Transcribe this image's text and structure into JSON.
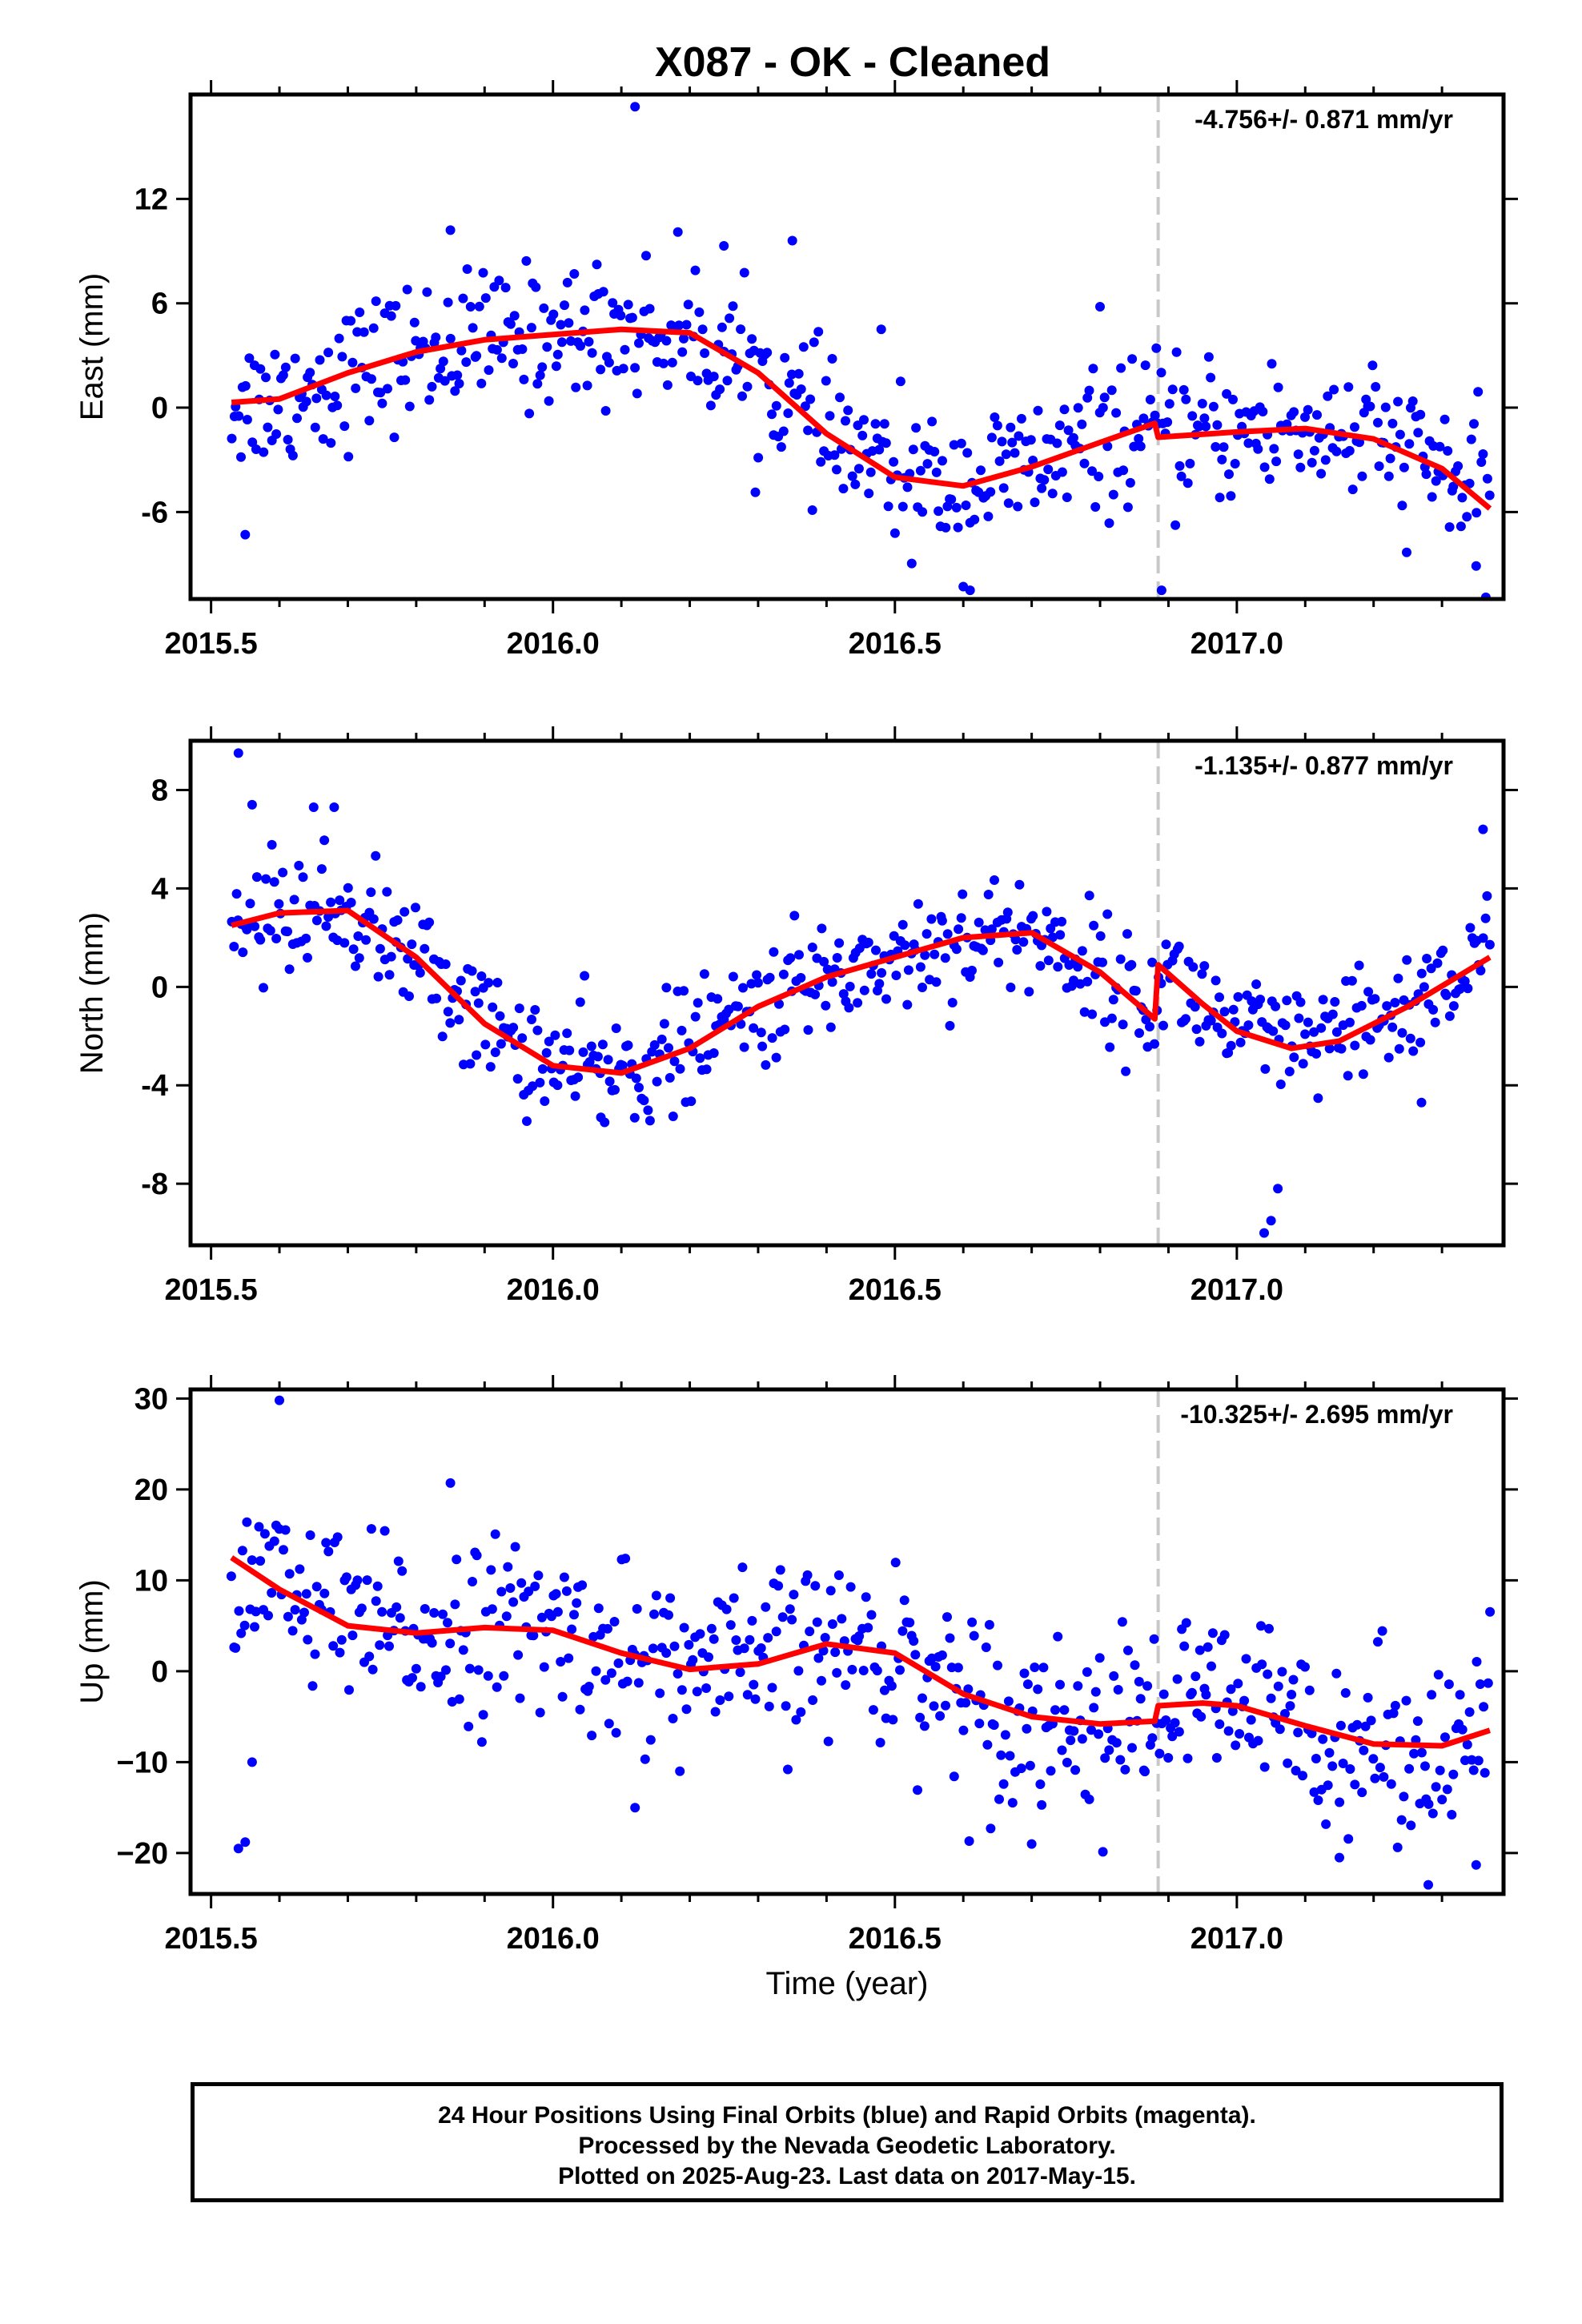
{
  "title": "X087  - OK - Cleaned",
  "xlabel": "Time (year)",
  "footer": {
    "line1": "24 Hour Positions Using Final Orbits (blue) and Rapid Orbits (magenta).",
    "line2": "Processed by the Nevada Geodetic Laboratory.",
    "line3": "Plotted on 2025-Aug-23. Last data on 2017-May-15."
  },
  "colors": {
    "points": "#0000ff",
    "fit": "#ff0000",
    "step_line": "#c8c8c8"
  },
  "chart_data": [
    {
      "type": "scatter",
      "name": "east",
      "ylabel": "East (mm)",
      "rate_text": "-4.756+/- 0.871 mm/yr",
      "xlim": [
        2015.47,
        2017.39
      ],
      "ylim": [
        -11,
        18
      ],
      "xticks": [
        "2015.5",
        "2016.0",
        "2016.5",
        "2017.0"
      ],
      "yticks": [
        "12",
        "6",
        "0",
        "-6"
      ],
      "equipment_change_x": 2016.885,
      "fit": {
        "x": [
          2015.53,
          2015.6,
          2015.7,
          2015.8,
          2015.9,
          2016.0,
          2016.1,
          2016.2,
          2016.3,
          2016.4,
          2016.5,
          2016.6,
          2016.7,
          2016.8,
          2016.88,
          2016.885,
          2017.0,
          2017.1,
          2017.2,
          2017.3,
          2017.37
        ],
        "y": [
          0.3,
          0.5,
          2.0,
          3.2,
          3.9,
          4.2,
          4.5,
          4.3,
          2.0,
          -1.5,
          -4.0,
          -4.5,
          -3.4,
          -2.0,
          -0.9,
          -1.7,
          -1.4,
          -1.2,
          -1.8,
          -3.5,
          -5.8
        ]
      },
      "noise_sd": 2.0,
      "outliers": {
        "x": [
          2015.55,
          2016.12,
          2015.85,
          2016.25,
          2016.35,
          2016.48,
          2016.8,
          2016.89,
          2016.61,
          2017.35
        ],
        "y": [
          -7.3,
          17.3,
          10.2,
          9.3,
          9.6,
          4.5,
          5.8,
          -10.5,
          -10.5,
          -9.1
        ]
      }
    },
    {
      "type": "scatter",
      "name": "north",
      "ylabel": "North (mm)",
      "rate_text": "-1.135+/- 0.877 mm/yr",
      "xlim": [
        2015.47,
        2017.39
      ],
      "ylim": [
        -10.5,
        10
      ],
      "xticks": [
        "2015.5",
        "2016.0",
        "2016.5",
        "2017.0"
      ],
      "yticks": [
        "8",
        "4",
        "0",
        "-4",
        "-8"
      ],
      "equipment_change_x": 2016.885,
      "fit": {
        "x": [
          2015.53,
          2015.6,
          2015.7,
          2015.8,
          2015.9,
          2016.0,
          2016.1,
          2016.2,
          2016.3,
          2016.4,
          2016.5,
          2016.6,
          2016.7,
          2016.8,
          2016.88,
          2016.885,
          2016.95,
          2017.0,
          2017.08,
          2017.15,
          2017.25,
          2017.37
        ],
        "y": [
          2.5,
          3.0,
          3.1,
          1.2,
          -1.5,
          -3.2,
          -3.5,
          -2.5,
          -0.8,
          0.4,
          1.2,
          2.0,
          2.2,
          0.6,
          -1.3,
          0.9,
          -0.7,
          -1.8,
          -2.5,
          -2.2,
          -0.8,
          1.2
        ]
      },
      "noise_sd": 1.2,
      "outliers": {
        "x": [
          2015.54,
          2015.56,
          2015.65,
          2015.68,
          2016.07,
          2017.05,
          2017.04,
          2017.06,
          2017.27,
          2017.36
        ],
        "y": [
          9.5,
          7.4,
          7.3,
          7.3,
          -5.3,
          -9.5,
          -10,
          -8.2,
          -4.7,
          6.4
        ]
      }
    },
    {
      "type": "scatter",
      "name": "up",
      "ylabel": "Up (mm)",
      "rate_text": "-10.325+/- 2.695 mm/yr",
      "xlim": [
        2015.47,
        2017.39
      ],
      "ylim": [
        -24.5,
        31
      ],
      "xticks": [
        "2015.5",
        "2016.0",
        "2016.5",
        "2017.0"
      ],
      "yticks": [
        "30",
        "20",
        "10",
        "0",
        "−10",
        "−20"
      ],
      "equipment_change_x": 2016.885,
      "fit": {
        "x": [
          2015.53,
          2015.6,
          2015.7,
          2015.8,
          2015.9,
          2016.0,
          2016.1,
          2016.2,
          2016.3,
          2016.4,
          2016.5,
          2016.6,
          2016.7,
          2016.8,
          2016.88,
          2016.885,
          2016.95,
          2017.0,
          2017.1,
          2017.2,
          2017.3,
          2017.37
        ],
        "y": [
          12.5,
          9.0,
          5.0,
          4.2,
          4.8,
          4.5,
          2.0,
          0.2,
          0.8,
          3.0,
          2.0,
          -2.5,
          -5.0,
          -5.8,
          -5.5,
          -3.8,
          -3.5,
          -3.8,
          -6.0,
          -8.0,
          -8.2,
          -6.5
        ]
      },
      "noise_sd": 4.8,
      "outliers": {
        "x": [
          2015.6,
          2015.54,
          2015.55,
          2015.56,
          2015.85,
          2016.12,
          2016.64,
          2016.7,
          2017.15,
          2017.28,
          2017.35
        ],
        "y": [
          29.8,
          -19.5,
          -18.8,
          -10,
          20.7,
          -15,
          -17.3,
          -19,
          -20.5,
          -23.5,
          -21.3
        ]
      }
    }
  ]
}
